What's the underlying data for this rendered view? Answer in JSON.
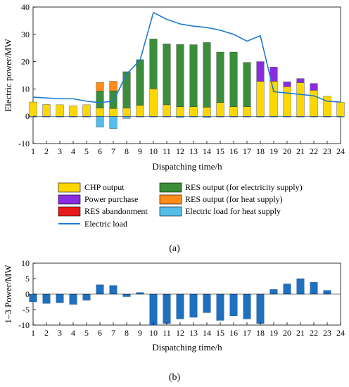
{
  "colors": {
    "chp": "#FFD700",
    "purchase": "#8A2BE2",
    "abandon": "#E8191A",
    "res_elec": "#3A8E3A",
    "res_heat": "#FF8C1A",
    "heat_load": "#56BDEB",
    "load_line": "#1F7ACF",
    "bar_b": "#1F70BF"
  },
  "chart_data": [
    {
      "panel_label": "(a)",
      "type": "bar",
      "stacked": true,
      "xlabel": "Dispatching time/h",
      "ylabel": "Electric power/MW",
      "xlim": [
        1,
        24
      ],
      "ylim": [
        -10,
        40
      ],
      "yticks": [
        -10,
        0,
        10,
        20,
        30,
        40
      ],
      "x": [
        1,
        2,
        3,
        4,
        5,
        6,
        7,
        8,
        9,
        10,
        11,
        12,
        13,
        14,
        15,
        16,
        17,
        18,
        19,
        20,
        21,
        22,
        23,
        24
      ],
      "legend": {
        "chp": "CHP output",
        "purchase": "Power purchase",
        "abandon": "RES abandonment",
        "load": "Electric load",
        "res_elec": "RES output (for electricity supply)",
        "res_heat": "RES output (for heat supply)",
        "heat_load": "Electric load for heat supply"
      },
      "series": [
        {
          "key": "chp",
          "values": [
            5.2,
            4.3,
            4.2,
            3.8,
            4.2,
            3.0,
            2.8,
            3.0,
            4.0,
            10.0,
            4.2,
            3.5,
            3.5,
            3.3,
            5.0,
            3.5,
            3.5,
            12.8,
            12.8,
            10.8,
            12.3,
            9.5,
            7.3,
            5.2
          ]
        },
        {
          "key": "res_elec",
          "values": [
            0,
            0,
            0,
            0,
            0,
            6.2,
            6.5,
            13.3,
            16.7,
            18.3,
            22.3,
            22.8,
            22.7,
            23.7,
            18.5,
            20.0,
            16.2,
            0,
            0,
            0,
            0,
            0,
            0,
            0
          ]
        },
        {
          "key": "purchase",
          "values": [
            0,
            0,
            0,
            0,
            0,
            0,
            0,
            0,
            0,
            0,
            0,
            0,
            0,
            0,
            0,
            0,
            0,
            7.2,
            5.2,
            1.8,
            1.5,
            2.5,
            0,
            0
          ]
        },
        {
          "key": "res_heat",
          "values": [
            0,
            0,
            0,
            0,
            0,
            3.2,
            3.5,
            0,
            0,
            0,
            0,
            0,
            0,
            0,
            0,
            0,
            0,
            0,
            0,
            0,
            0,
            0,
            0,
            0
          ]
        },
        {
          "key": "heat_load",
          "values": [
            -0.3,
            -0.3,
            -0.3,
            -0.3,
            -0.3,
            -4.0,
            -4.5,
            -0.8,
            -0.3,
            -0.3,
            -0.3,
            -0.5,
            -0.3,
            -0.5,
            -0.3,
            -0.3,
            -0.3,
            -0.3,
            -0.3,
            -0.3,
            -0.3,
            -0.3,
            -0.3,
            -0.3
          ]
        },
        {
          "key": "abandon",
          "values": [
            0,
            0,
            0,
            0,
            0,
            0,
            0,
            0,
            0,
            0,
            0,
            0,
            0,
            0,
            0,
            0,
            0,
            0,
            0,
            0,
            0,
            0,
            0,
            0
          ]
        }
      ],
      "line": {
        "key": "load",
        "values": [
          7.0,
          6.7,
          6.4,
          6.4,
          5.5,
          5.0,
          5.5,
          15.5,
          20.5,
          38.0,
          35.5,
          33.8,
          33.0,
          32.5,
          31.5,
          30.0,
          27.5,
          29.5,
          9.0,
          8.5,
          8.0,
          7.5,
          5.5,
          5.2
        ]
      }
    },
    {
      "panel_label": "(b)",
      "type": "bar",
      "xlabel": "Dispatching time/h",
      "ylabel": "1–3 Power/MW",
      "xlim": [
        1,
        24
      ],
      "ylim": [
        -10,
        10
      ],
      "yticks": [
        -10,
        -5,
        0,
        5,
        10
      ],
      "x": [
        1,
        2,
        3,
        4,
        5,
        6,
        7,
        8,
        9,
        10,
        11,
        12,
        13,
        14,
        15,
        16,
        17,
        18,
        19,
        20,
        21,
        22,
        23,
        24
      ],
      "values": [
        -2.5,
        -3.0,
        -2.8,
        -3.3,
        -2.0,
        3.0,
        2.8,
        -0.8,
        0.5,
        -10.0,
        -9.5,
        -8.0,
        -7.5,
        -6.0,
        -8.5,
        -7.0,
        -8.0,
        -9.5,
        1.5,
        3.3,
        5.0,
        3.8,
        1.2,
        0
      ]
    }
  ]
}
